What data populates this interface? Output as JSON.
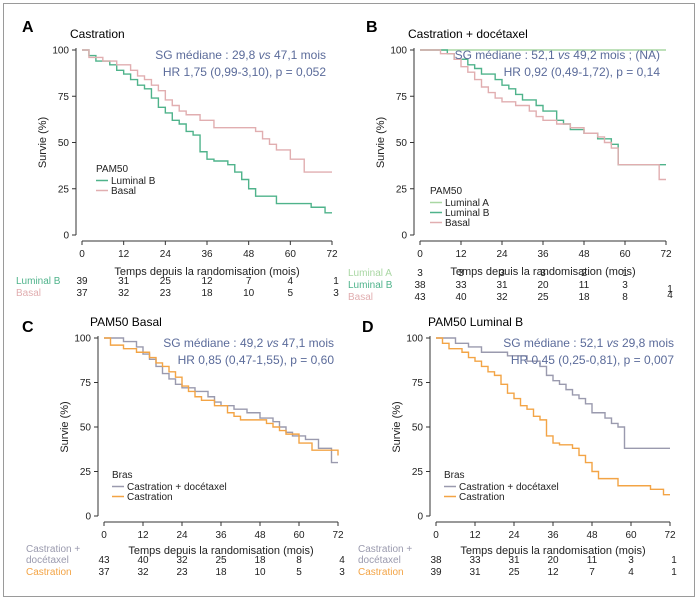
{
  "colors": {
    "luminal_b": "#4fb38b",
    "basal": "#e1aeb0",
    "luminal_a": "#a9d7a3",
    "castration_docetaxel": "#9a9aae",
    "castration": "#f3a445",
    "stat_text": "#5b6b9a"
  },
  "chart_data": [
    {
      "letter": "A",
      "type": "line",
      "title": "Castration",
      "stat_lines": [
        {
          "pre": "SG médiane : 29,8 ",
          "em": "vs",
          "post": " 47,1 mois"
        },
        {
          "pre": "HR 1,75 (0,99-3,10), p = 0,052",
          "em": "",
          "post": ""
        }
      ],
      "xlabel": "Temps depuis la randomisation (mois)",
      "ylabel": "Survie (%)",
      "x_ticks": [
        0,
        12,
        24,
        36,
        48,
        60,
        72
      ],
      "y_ticks": [
        0,
        25,
        50,
        75,
        100
      ],
      "xlim": [
        0,
        72
      ],
      "ylim": [
        0,
        100
      ],
      "legend_title": "PAM50",
      "series": [
        {
          "name": "Luminal B",
          "color_key": "luminal_b",
          "points": [
            [
              0,
              100
            ],
            [
              2,
              97
            ],
            [
              4,
              94
            ],
            [
              8,
              92
            ],
            [
              10,
              89
            ],
            [
              12,
              87
            ],
            [
              14,
              84
            ],
            [
              16,
              81
            ],
            [
              18,
              79
            ],
            [
              20,
              74
            ],
            [
              22,
              69
            ],
            [
              24,
              66
            ],
            [
              26,
              62
            ],
            [
              28,
              60
            ],
            [
              30,
              56
            ],
            [
              32,
              54
            ],
            [
              34,
              45
            ],
            [
              36,
              41
            ],
            [
              38,
              40
            ],
            [
              42,
              38
            ],
            [
              44,
              34
            ],
            [
              46,
              30
            ],
            [
              48,
              25
            ],
            [
              50,
              21
            ],
            [
              56,
              17
            ],
            [
              66,
              15
            ],
            [
              70,
              12
            ],
            [
              72,
              12
            ]
          ]
        },
        {
          "name": "Basal",
          "color_key": "basal",
          "points": [
            [
              0,
              100
            ],
            [
              2,
              96
            ],
            [
              6,
              94
            ],
            [
              10,
              92
            ],
            [
              14,
              89
            ],
            [
              16,
              86
            ],
            [
              18,
              84
            ],
            [
              20,
              81
            ],
            [
              22,
              78
            ],
            [
              24,
              73
            ],
            [
              26,
              70
            ],
            [
              28,
              67
            ],
            [
              30,
              65
            ],
            [
              34,
              62
            ],
            [
              38,
              58
            ],
            [
              48,
              58
            ],
            [
              50,
              56
            ],
            [
              52,
              52
            ],
            [
              54,
              49
            ],
            [
              56,
              46
            ],
            [
              60,
              41
            ],
            [
              62,
              41
            ],
            [
              64,
              34
            ],
            [
              72,
              34
            ]
          ]
        }
      ],
      "risk_rows": [
        {
          "label": "Luminal B",
          "color_key": "luminal_b",
          "values": [
            "39",
            "31",
            "25",
            "12",
            "7",
            "4",
            "1"
          ]
        },
        {
          "label": "Basal",
          "color_key": "basal",
          "values": [
            "37",
            "32",
            "23",
            "18",
            "10",
            "5",
            "3"
          ]
        }
      ]
    },
    {
      "letter": "B",
      "type": "line",
      "title": "Castration + docétaxel",
      "stat_lines": [
        {
          "pre": "SG médiane : 52,1 ",
          "em": "vs",
          "post": " 49,2 mois ; (NA)"
        },
        {
          "pre": "HR 0,92 (0,49-1,72), p = 0,14",
          "em": "",
          "post": ""
        }
      ],
      "xlabel": "Temps depuis la randomisation (mois)",
      "ylabel": "Survie (%)",
      "x_ticks": [
        0,
        12,
        24,
        36,
        48,
        60,
        72
      ],
      "y_ticks": [
        0,
        25,
        50,
        75,
        100
      ],
      "xlim": [
        0,
        72
      ],
      "ylim": [
        0,
        100
      ],
      "legend_title": "PAM50",
      "series": [
        {
          "name": "Luminal A",
          "color_key": "luminal_a",
          "points": [
            [
              0,
              100
            ],
            [
              72,
              100
            ]
          ]
        },
        {
          "name": "Luminal B",
          "color_key": "luminal_b",
          "points": [
            [
              0,
              100
            ],
            [
              8,
              98
            ],
            [
              10,
              95
            ],
            [
              14,
              92
            ],
            [
              16,
              90
            ],
            [
              18,
              87
            ],
            [
              22,
              84
            ],
            [
              24,
              81
            ],
            [
              26,
              79
            ],
            [
              28,
              76
            ],
            [
              30,
              73
            ],
            [
              34,
              70
            ],
            [
              36,
              67
            ],
            [
              40,
              62
            ],
            [
              42,
              60
            ],
            [
              44,
              57
            ],
            [
              48,
              55
            ],
            [
              52,
              52
            ],
            [
              56,
              49
            ],
            [
              58,
              38
            ],
            [
              72,
              38
            ]
          ]
        },
        {
          "name": "Basal",
          "color_key": "basal",
          "points": [
            [
              0,
              100
            ],
            [
              6,
              98
            ],
            [
              10,
              95
            ],
            [
              12,
              91
            ],
            [
              14,
              88
            ],
            [
              16,
              84
            ],
            [
              18,
              80
            ],
            [
              20,
              77
            ],
            [
              22,
              74
            ],
            [
              24,
              72
            ],
            [
              28,
              70
            ],
            [
              32,
              67
            ],
            [
              34,
              64
            ],
            [
              36,
              62
            ],
            [
              40,
              60
            ],
            [
              44,
              58
            ],
            [
              48,
              55
            ],
            [
              52,
              53
            ],
            [
              54,
              50
            ],
            [
              56,
              47
            ],
            [
              58,
              38
            ],
            [
              70,
              35
            ],
            [
              70,
              30
            ],
            [
              72,
              30
            ]
          ]
        }
      ],
      "risk_rows": [
        {
          "label": "Luminal A",
          "color_key": "luminal_a",
          "values": [
            "3",
            "3",
            "3",
            "3",
            "2",
            "1",
            ""
          ]
        },
        {
          "label": "Luminal B",
          "color_key": "luminal_b",
          "values": [
            "38",
            "33",
            "31",
            "20",
            "11",
            "3",
            "1"
          ]
        },
        {
          "label": "Basal",
          "color_key": "basal",
          "values": [
            "43",
            "40",
            "32",
            "25",
            "18",
            "8",
            "4"
          ]
        }
      ]
    },
    {
      "letter": "C",
      "type": "line",
      "title": "PAM50 Basal",
      "stat_lines": [
        {
          "pre": "SG médiane : 49,2 ",
          "em": "vs",
          "post": " 47,1 mois"
        },
        {
          "pre": "HR 0,85 (0,47-1,55), p = 0,60",
          "em": "",
          "post": ""
        }
      ],
      "xlabel": "Temps depuis la randomisation (mois)",
      "ylabel": "Survie (%)",
      "x_ticks": [
        0,
        12,
        24,
        36,
        48,
        60,
        72
      ],
      "y_ticks": [
        0,
        25,
        50,
        75,
        100
      ],
      "xlim": [
        0,
        72
      ],
      "ylim": [
        0,
        100
      ],
      "legend_title": "Bras",
      "series": [
        {
          "name": "Castration + docétaxel",
          "color_key": "castration_docetaxel",
          "points": [
            [
              0,
              100
            ],
            [
              6,
              98
            ],
            [
              10,
              95
            ],
            [
              12,
              91
            ],
            [
              14,
              88
            ],
            [
              16,
              84
            ],
            [
              18,
              80
            ],
            [
              20,
              77
            ],
            [
              22,
              74
            ],
            [
              24,
              72
            ],
            [
              28,
              70
            ],
            [
              32,
              67
            ],
            [
              34,
              64
            ],
            [
              36,
              62
            ],
            [
              40,
              60
            ],
            [
              44,
              58
            ],
            [
              48,
              55
            ],
            [
              52,
              53
            ],
            [
              54,
              50
            ],
            [
              56,
              47
            ],
            [
              58,
              45
            ],
            [
              62,
              43
            ],
            [
              66,
              38
            ],
            [
              70,
              35
            ],
            [
              70,
              30
            ],
            [
              72,
              30
            ]
          ]
        },
        {
          "name": "Castration",
          "color_key": "castration",
          "points": [
            [
              0,
              100
            ],
            [
              2,
              96
            ],
            [
              6,
              94
            ],
            [
              10,
              92
            ],
            [
              14,
              89
            ],
            [
              16,
              86
            ],
            [
              18,
              84
            ],
            [
              20,
              81
            ],
            [
              22,
              78
            ],
            [
              24,
              73
            ],
            [
              26,
              70
            ],
            [
              28,
              67
            ],
            [
              30,
              65
            ],
            [
              34,
              62
            ],
            [
              38,
              58
            ],
            [
              40,
              56
            ],
            [
              42,
              54
            ],
            [
              48,
              54
            ],
            [
              50,
              52
            ],
            [
              52,
              50
            ],
            [
              54,
              48
            ],
            [
              56,
              46
            ],
            [
              60,
              41
            ],
            [
              62,
              41
            ],
            [
              64,
              37
            ],
            [
              72,
              34
            ]
          ]
        }
      ],
      "risk_rows": [
        {
          "label": "Castration +\ndocétaxel",
          "color_key": "castration_docetaxel",
          "values": [
            "43",
            "40",
            "32",
            "25",
            "18",
            "8",
            "4"
          ]
        },
        {
          "label": "Castration",
          "color_key": "castration",
          "values": [
            "37",
            "32",
            "23",
            "18",
            "10",
            "5",
            "3"
          ]
        }
      ]
    },
    {
      "letter": "D",
      "type": "line",
      "title": "PAM50 Luminal B",
      "stat_lines": [
        {
          "pre": "SG médiane : 52,1 ",
          "em": "vs",
          "post": " 29,8 mois"
        },
        {
          "pre": "HR 0,45 (0,25-0,81), p = 0,007",
          "em": "",
          "post": ""
        }
      ],
      "xlabel": "Temps depuis la randomisation (mois)",
      "ylabel": "Survie (%)",
      "x_ticks": [
        0,
        12,
        24,
        36,
        48,
        60,
        72
      ],
      "y_ticks": [
        0,
        25,
        50,
        75,
        100
      ],
      "xlim": [
        0,
        72
      ],
      "ylim": [
        0,
        100
      ],
      "legend_title": "Bras",
      "series": [
        {
          "name": "Castration + docétaxel",
          "color_key": "castration_docetaxel",
          "points": [
            [
              0,
              100
            ],
            [
              4,
              100
            ],
            [
              6,
              97
            ],
            [
              10,
              95
            ],
            [
              14,
              92
            ],
            [
              18,
              92
            ],
            [
              22,
              90
            ],
            [
              26,
              90
            ],
            [
              28,
              87
            ],
            [
              32,
              84
            ],
            [
              34,
              79
            ],
            [
              36,
              76
            ],
            [
              38,
              74
            ],
            [
              40,
              71
            ],
            [
              42,
              68
            ],
            [
              44,
              66
            ],
            [
              46,
              63
            ],
            [
              48,
              58
            ],
            [
              52,
              55
            ],
            [
              54,
              52
            ],
            [
              56,
              50
            ],
            [
              58,
              38
            ],
            [
              72,
              38
            ]
          ]
        },
        {
          "name": "Castration",
          "color_key": "castration",
          "points": [
            [
              0,
              100
            ],
            [
              2,
              97
            ],
            [
              4,
              94
            ],
            [
              8,
              92
            ],
            [
              10,
              89
            ],
            [
              12,
              87
            ],
            [
              14,
              84
            ],
            [
              16,
              81
            ],
            [
              18,
              79
            ],
            [
              20,
              74
            ],
            [
              22,
              69
            ],
            [
              24,
              66
            ],
            [
              26,
              62
            ],
            [
              28,
              60
            ],
            [
              30,
              56
            ],
            [
              32,
              54
            ],
            [
              34,
              45
            ],
            [
              36,
              41
            ],
            [
              38,
              40
            ],
            [
              42,
              38
            ],
            [
              44,
              34
            ],
            [
              46,
              30
            ],
            [
              48,
              25
            ],
            [
              50,
              21
            ],
            [
              56,
              17
            ],
            [
              66,
              15
            ],
            [
              70,
              12
            ],
            [
              72,
              12
            ]
          ]
        }
      ],
      "risk_rows": [
        {
          "label": "Castration +\ndocétaxel",
          "color_key": "castration_docetaxel",
          "values": [
            "38",
            "33",
            "31",
            "20",
            "11",
            "3",
            "1"
          ]
        },
        {
          "label": "Castration",
          "color_key": "castration",
          "values": [
            "39",
            "31",
            "25",
            "12",
            "7",
            "4",
            "1"
          ]
        }
      ]
    }
  ]
}
